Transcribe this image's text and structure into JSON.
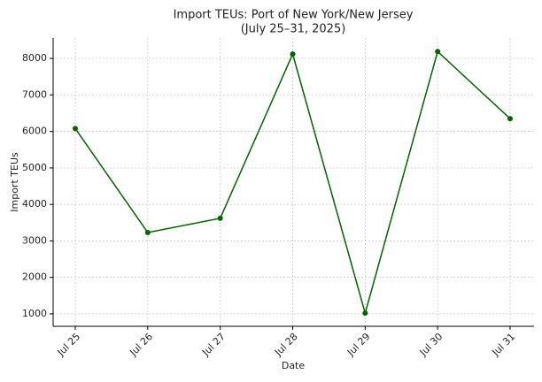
{
  "chart_data": {
    "type": "line",
    "title": "Import TEUs: Port of New York/New Jersey",
    "subtitle": "(July 25–31, 2025)",
    "x_label": "Date",
    "y_label": "Import TEUs",
    "categories": [
      "Jul 25",
      "Jul 26",
      "Jul 27",
      "Jul 28",
      "Jul 29",
      "Jul 30",
      "Jul 31"
    ],
    "values": [
      6080,
      3230,
      3620,
      8120,
      1020,
      8190,
      6350
    ],
    "color": "#006400",
    "ylim": [
      660,
      8560
    ],
    "yticks": [
      1000,
      2000,
      3000,
      4000,
      5000,
      6000,
      7000,
      8000
    ],
    "grid": true
  }
}
